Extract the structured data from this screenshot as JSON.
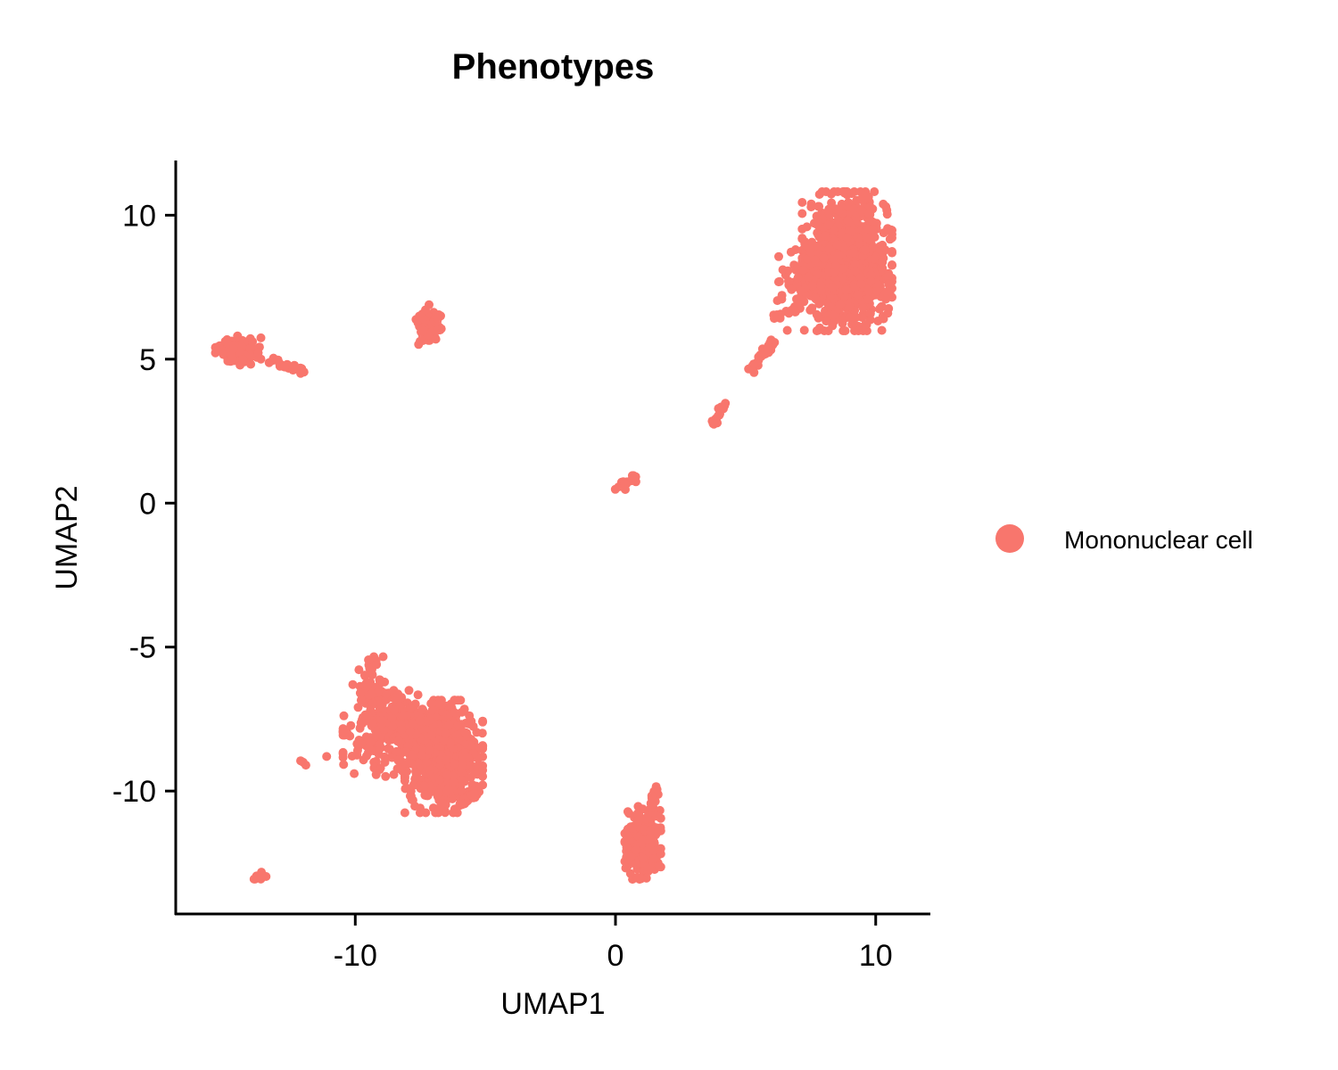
{
  "chart_data": {
    "type": "scatter",
    "title": "Phenotypes",
    "xlabel": "UMAP1",
    "ylabel": "UMAP2",
    "xlim": [
      -16.9,
      12.1
    ],
    "ylim": [
      -14.3,
      11.9
    ],
    "x_ticks": [
      -10,
      0,
      10
    ],
    "y_ticks": [
      -10,
      -5,
      0,
      5,
      10
    ],
    "grid": false,
    "legend_position": "right",
    "series": [
      {
        "name": "Mononuclear cell",
        "color": "#F8766D",
        "clusters": [
          {
            "cx": 8.9,
            "cy": 8.4,
            "sx": 0.75,
            "sy": 1.05,
            "n": 1100
          },
          {
            "cx": 7.6,
            "cy": 7.8,
            "sx": 0.6,
            "sy": 0.45,
            "n": 140
          },
          {
            "cx": -6.6,
            "cy": -8.8,
            "sx": 0.65,
            "sy": 0.85,
            "n": 800
          },
          {
            "cx": -8.4,
            "cy": -8.0,
            "sx": 0.9,
            "sy": 0.65,
            "n": 320
          },
          {
            "cx": -9.5,
            "cy": -6.6,
            "sx": 0.3,
            "sy": 0.55,
            "n": 60
          },
          {
            "cx": 1.05,
            "cy": -11.8,
            "sx": 0.3,
            "sy": 0.55,
            "n": 260
          },
          {
            "cx": -7.2,
            "cy": 6.2,
            "sx": 0.22,
            "sy": 0.3,
            "n": 90
          },
          {
            "cx": -14.5,
            "cy": 5.3,
            "sx": 0.38,
            "sy": 0.22,
            "n": 120
          }
        ],
        "segments": [
          {
            "x1": 5.1,
            "y1": 4.6,
            "x2": 6.1,
            "y2": 5.6,
            "n": 35
          },
          {
            "x1": 3.7,
            "y1": 2.7,
            "x2": 4.3,
            "y2": 3.5,
            "n": 22
          },
          {
            "x1": 0.0,
            "y1": 0.5,
            "x2": 0.8,
            "y2": 0.9,
            "n": 22
          },
          {
            "x1": -13.3,
            "y1": 4.9,
            "x2": -11.9,
            "y2": 4.6,
            "n": 22
          },
          {
            "x1": -13.8,
            "y1": -13.1,
            "x2": -13.4,
            "y2": -12.8,
            "n": 10
          },
          {
            "x1": 6.1,
            "y1": 6.4,
            "x2": 7.0,
            "y2": 6.8,
            "n": 14
          },
          {
            "x1": -6.0,
            "y1": -10.5,
            "x2": -5.3,
            "y2": -10.0,
            "n": 30
          },
          {
            "x1": 1.3,
            "y1": -10.8,
            "x2": 1.6,
            "y2": -9.9,
            "n": 20
          }
        ],
        "points": [
          {
            "x": -12.0,
            "y": -9.0
          },
          {
            "x": -11.9,
            "y": -9.1
          },
          {
            "x": -12.1,
            "y": -8.95
          },
          {
            "x": -11.1,
            "y": -8.8
          },
          {
            "x": 6.6,
            "y": 6.0
          },
          {
            "x": 10.5,
            "y": 7.6
          },
          {
            "x": 10.3,
            "y": 6.4
          },
          {
            "x": 9.6,
            "y": 6.2
          }
        ]
      }
    ]
  }
}
